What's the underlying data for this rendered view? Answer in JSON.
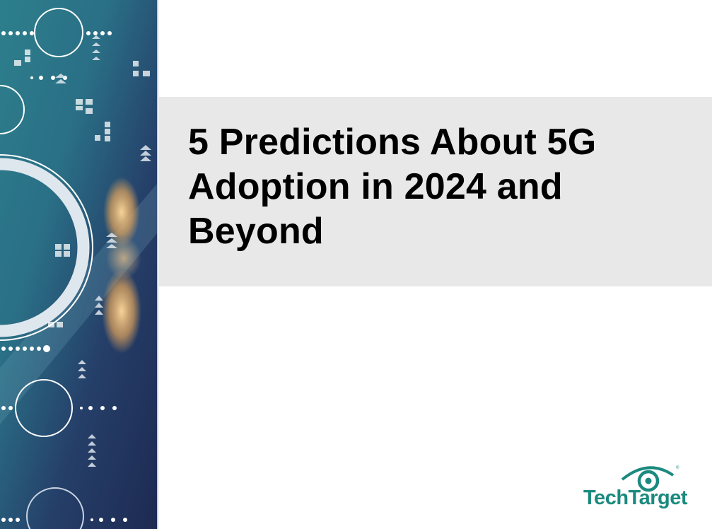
{
  "title": {
    "lines": [
      "5 Predictions About 5G",
      "Adoption in 2024 and",
      "Beyond"
    ]
  },
  "logo": {
    "text": "TechTarget",
    "mark": "eye-target-icon",
    "color": "#1b8a7e"
  },
  "colors": {
    "title_band": "#e8e8e8",
    "art_dark": "#1f3356",
    "art_teal": "#2a7a8a"
  }
}
